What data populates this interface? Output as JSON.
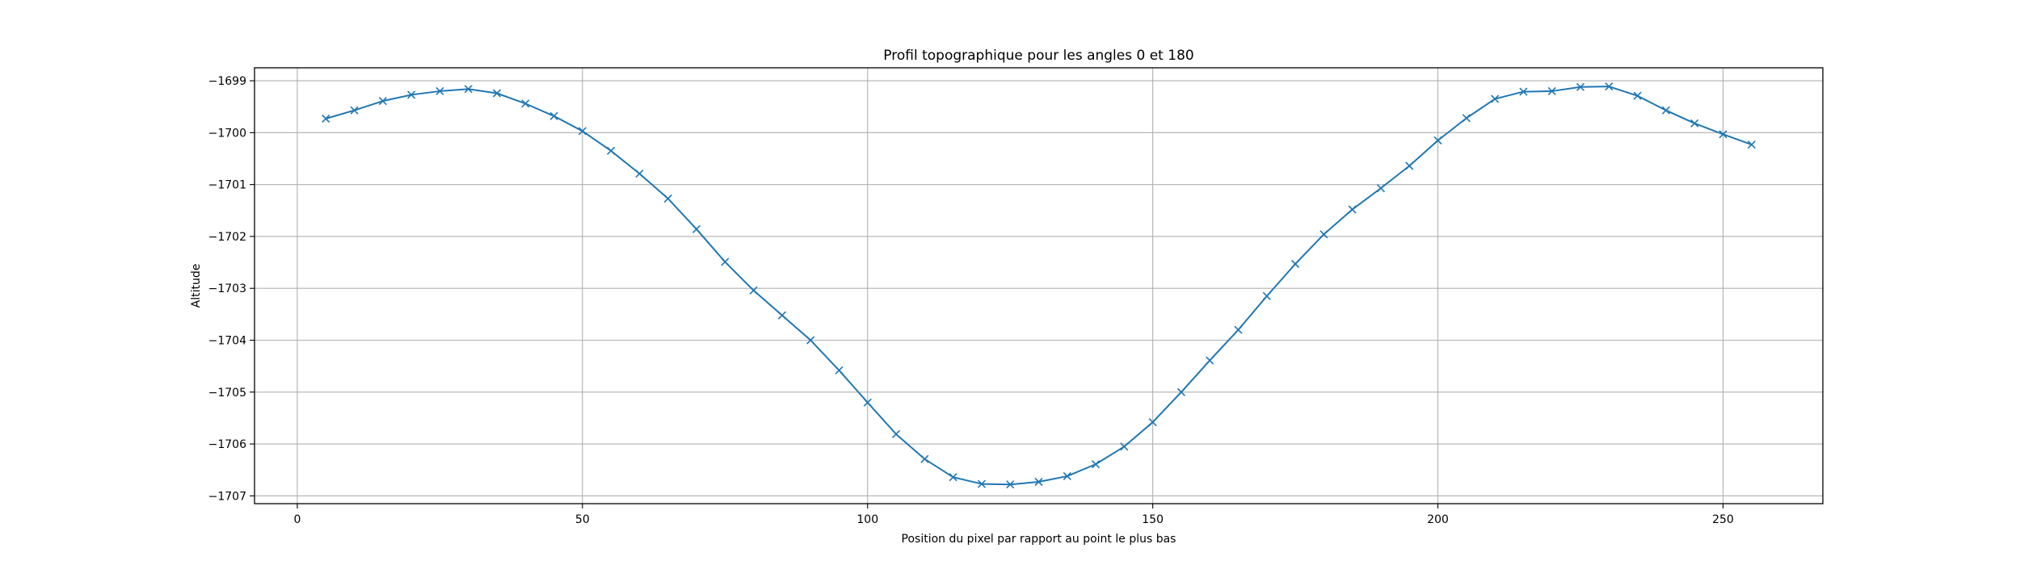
{
  "chart_data": {
    "type": "line",
    "title": "Profil topographique pour les angles 0 et 180",
    "xlabel": "Position du pixel par rapport au point le plus bas",
    "ylabel": "Altitude",
    "xlim": [
      -7.5,
      267.5
    ],
    "ylim": [
      -1707.15,
      -1698.75
    ],
    "xticks": [
      0,
      50,
      100,
      150,
      200,
      250
    ],
    "yticks": [
      -1699,
      -1700,
      -1701,
      -1702,
      -1703,
      -1704,
      -1705,
      -1706,
      -1707
    ],
    "grid": true,
    "marker": "x",
    "color": "#1f77b4",
    "series": [
      {
        "x": [
          5,
          10,
          15,
          20,
          25,
          30,
          35,
          40,
          45,
          50,
          55,
          60,
          65,
          70,
          75,
          80,
          85,
          90,
          95,
          100,
          105,
          110,
          115,
          120,
          125,
          130,
          135,
          140,
          145,
          150,
          155,
          160,
          165,
          170,
          175,
          180,
          185,
          190,
          195,
          200,
          205,
          210,
          215,
          220,
          225,
          230,
          235,
          240,
          245,
          250,
          255
        ],
        "y": [
          -1699.73,
          -1699.57,
          -1699.39,
          -1699.27,
          -1699.2,
          -1699.16,
          -1699.24,
          -1699.44,
          -1699.68,
          -1699.97,
          -1700.35,
          -1700.79,
          -1701.27,
          -1701.86,
          -1702.49,
          -1703.04,
          -1703.52,
          -1704.0,
          -1704.58,
          -1705.2,
          -1705.81,
          -1706.29,
          -1706.64,
          -1706.77,
          -1706.78,
          -1706.73,
          -1706.62,
          -1706.39,
          -1706.05,
          -1705.58,
          -1705.0,
          -1704.39,
          -1703.8,
          -1703.15,
          -1702.53,
          -1701.96,
          -1701.48,
          -1701.07,
          -1700.64,
          -1700.15,
          -1699.72,
          -1699.35,
          -1699.21,
          -1699.2,
          -1699.12,
          -1699.11,
          -1699.29,
          -1699.57,
          -1699.82,
          -1700.03,
          -1700.23
        ]
      }
    ]
  }
}
